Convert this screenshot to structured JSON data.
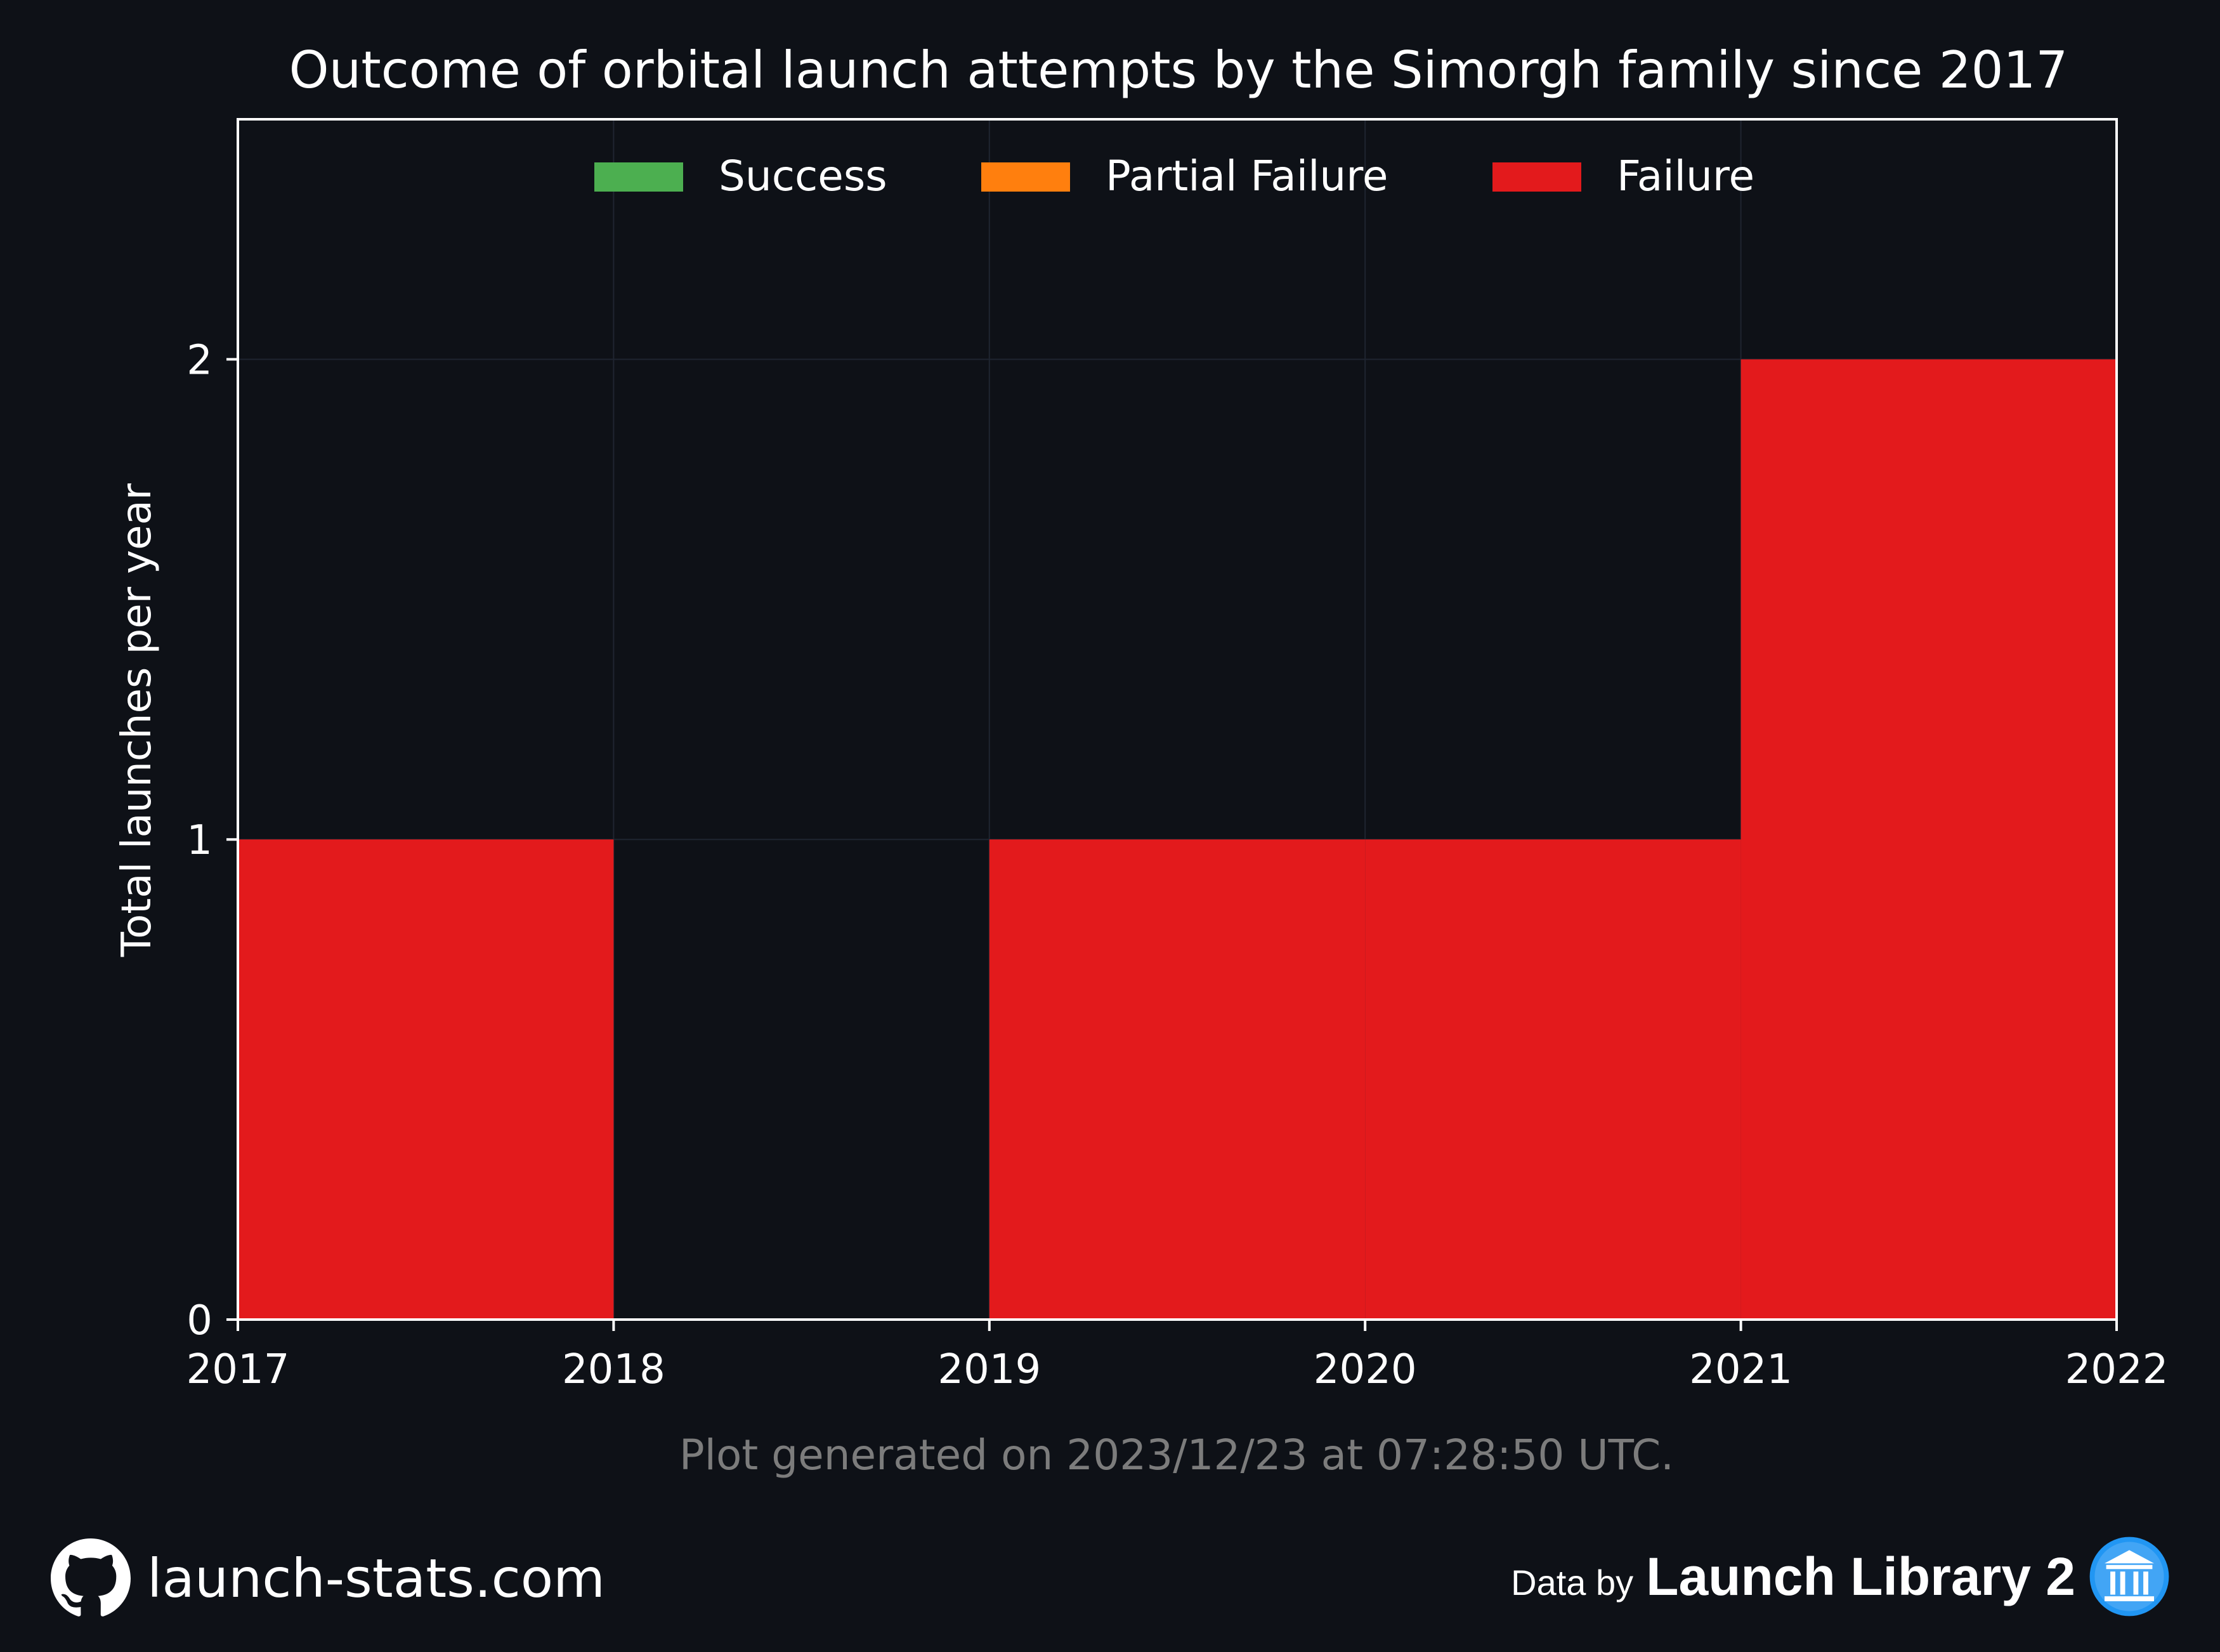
{
  "chart_data": {
    "type": "bar",
    "title": "Outcome of orbital launch attempts by the Simorgh family since 2017",
    "xlabel": "",
    "ylabel": "Total launches per year",
    "x_ticks": [
      "2017",
      "2018",
      "2019",
      "2020",
      "2021",
      "2022"
    ],
    "y_ticks": [
      "0",
      "1",
      "2"
    ],
    "xlim": [
      2017,
      2022
    ],
    "ylim": [
      0,
      2.5
    ],
    "categories": [
      "2017",
      "2018",
      "2019",
      "2020",
      "2021"
    ],
    "stacked": true,
    "series": [
      {
        "name": "Success",
        "color": "#4caf50",
        "values": [
          0,
          0,
          0,
          0,
          0
        ]
      },
      {
        "name": "Partial Failure",
        "color": "#ff7f0e",
        "values": [
          0,
          0,
          0,
          0,
          0
        ]
      },
      {
        "name": "Failure",
        "color": "#e31a1c",
        "values": [
          1,
          0,
          1,
          1,
          2
        ]
      }
    ],
    "grid": true,
    "legend_position": "top-center"
  },
  "footer": {
    "generated": "Plot generated on 2023/12/23 at 07:28:50 UTC.",
    "site": "launch-stats.com",
    "data_by": "Data by",
    "source": "Launch Library 2",
    "github_icon": "github-icon",
    "source_icon": "launch-library-icon"
  },
  "colors": {
    "background": "#0e1117",
    "axis": "#ffffff",
    "grid": "#1f2530",
    "muted_text": "#8a8a8a"
  }
}
